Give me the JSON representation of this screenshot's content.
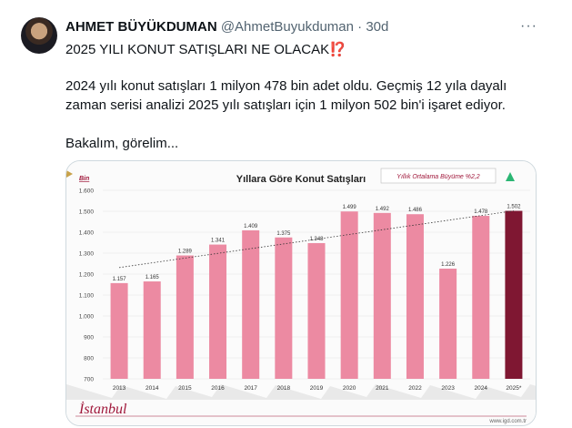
{
  "tweet": {
    "author_name": "AHMET BÜYÜKDUMAN",
    "handle": "@AhmetBuyukduman",
    "separator": "·",
    "age": "30d",
    "more_label": "···",
    "title": "2025 YILI KONUT SATIŞLARI NE OLACAK",
    "title_emoji": "⁉️",
    "line1": "2024 yılı konut satışları 1 milyon 478 bin adet oldu. Geçmiş 12 yıla dayalı",
    "line2": "zaman serisi analizi 2025 yılı satışları için 1 milyon 502 bin'i işaret ediyor.",
    "line3": "Bakalım, görelim..."
  },
  "chart_data": {
    "type": "bar",
    "title": "Yıllara Göre Konut Satışları",
    "unit_label": "Bin",
    "annotation": "Yıllık Ortalama Büyüme %2,2",
    "ylim": [
      700,
      1600
    ],
    "yticks": [
      "1.600",
      "1.500",
      "1.400",
      "1.300",
      "1.200",
      "1.100",
      "1.000",
      "900",
      "800",
      "700"
    ],
    "categories": [
      "2013",
      "2014",
      "2015",
      "2016",
      "2017",
      "2018",
      "2019",
      "2020",
      "2021",
      "2022",
      "2023",
      "2024",
      "2025*"
    ],
    "values": [
      1157,
      1165,
      1289,
      1341,
      1409,
      1375,
      1348,
      1499,
      1492,
      1486,
      1226,
      1478,
      1502
    ],
    "value_labels": [
      "1.157",
      "1.165",
      "1.289",
      "1.341",
      "1.409",
      "1.375",
      "1.348",
      "1.499",
      "1.492",
      "1.486",
      "1.226",
      "1.478",
      "1.502"
    ],
    "trendline": "dotted",
    "colors": {
      "bar": "#ec8aa2",
      "forecast_bar": "#7f1732",
      "trend_arrow": "#2bb673",
      "accent": "#a0183b"
    },
    "footer_left": "İstanbul",
    "footer_right": "www.igd.com.tr"
  }
}
